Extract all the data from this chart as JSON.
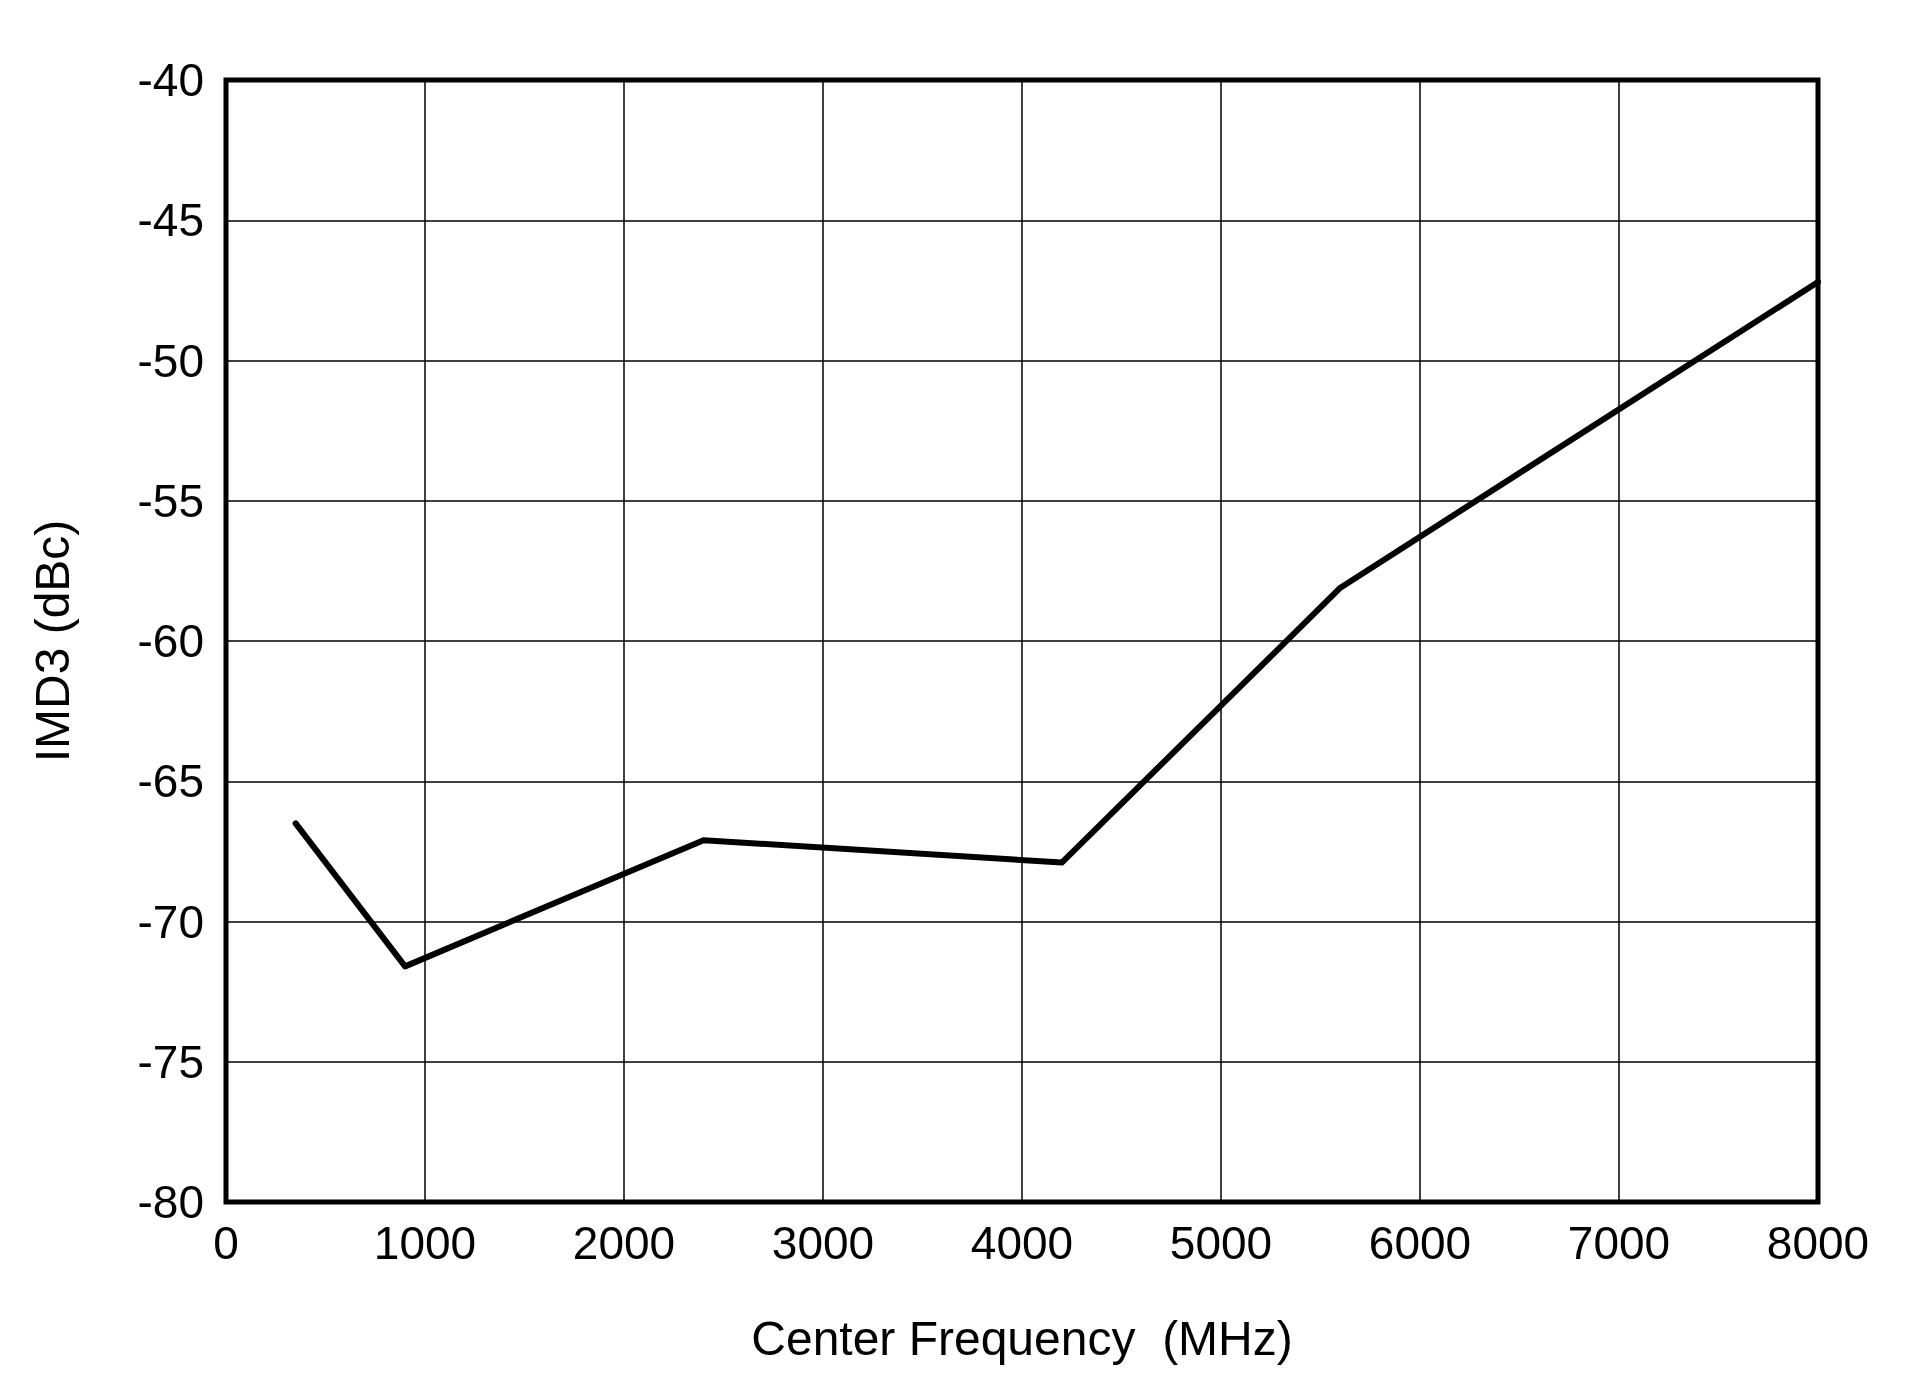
{
  "chart_data": {
    "type": "line",
    "xlabel": "Center Frequency  (MHz)",
    "ylabel": "IMD3 (dBc)",
    "x": [
      350,
      900,
      2400,
      4200,
      5600,
      8000
    ],
    "series": [
      {
        "color": "#000000",
        "values": [
          -66.5,
          -71.6,
          -67.1,
          -67.9,
          -58.1,
          -47.2
        ]
      }
    ],
    "xlim": [
      0,
      8000
    ],
    "xticks": [
      0,
      1000,
      2000,
      3000,
      4000,
      5000,
      6000,
      7000,
      8000
    ],
    "ylim": [
      -80,
      -40
    ],
    "yticks": [
      -80,
      -75,
      -70,
      -65,
      -60,
      -55,
      -50,
      -45,
      -40
    ],
    "grid": true,
    "line_style": "solid"
  }
}
